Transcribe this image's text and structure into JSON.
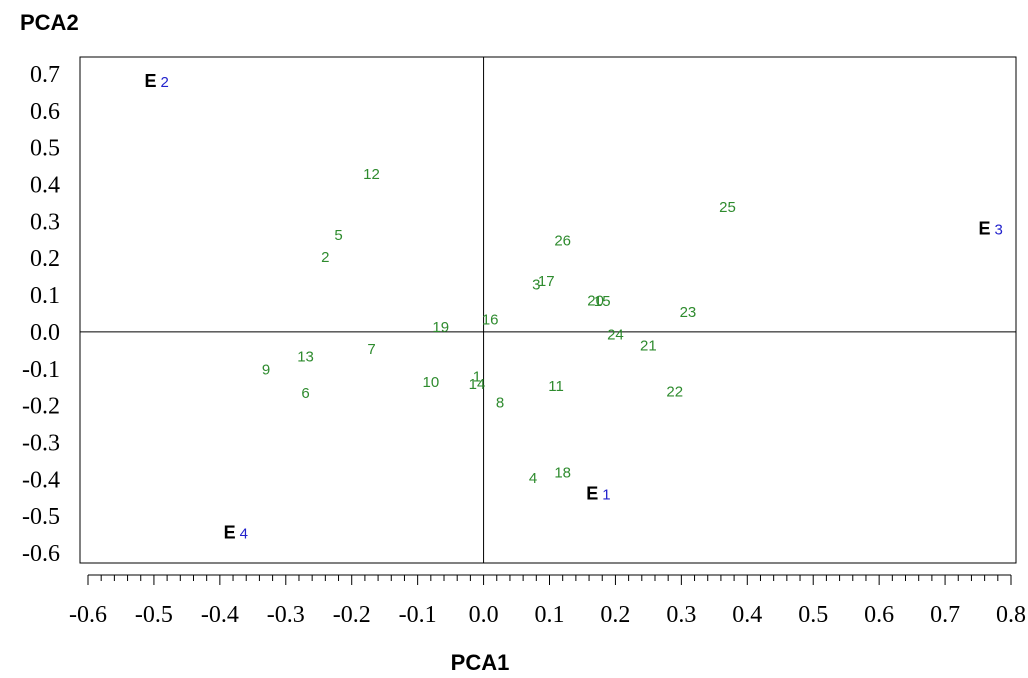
{
  "chart_data": {
    "type": "scatter",
    "xlabel": "PCA1",
    "ylabel": "PCA2",
    "xlim": [
      -0.6,
      0.8
    ],
    "ylim": [
      -0.6,
      0.7
    ],
    "x_ticks": [
      -0.6,
      -0.5,
      -0.4,
      -0.3,
      -0.2,
      -0.1,
      0.0,
      0.1,
      0.2,
      0.3,
      0.4,
      0.5,
      0.6,
      0.7,
      0.8
    ],
    "x_tick_labels": [
      "-0.6",
      "-0.5",
      "-0.4",
      "-0.3",
      "-0.2",
      "-0.1",
      "0.0",
      "0.1",
      "0.2",
      "0.3",
      "0.4",
      "0.5",
      "0.6",
      "0.7",
      "0.8"
    ],
    "y_ticks": [
      0.7,
      0.6,
      0.5,
      0.4,
      0.3,
      0.2,
      0.1,
      0.0,
      -0.1,
      -0.2,
      -0.3,
      -0.4,
      -0.5,
      -0.6
    ],
    "y_tick_labels": [
      "0.7",
      "0.6",
      "0.5",
      "0.4",
      "0.3",
      "0.2",
      "0.1",
      "0.0",
      "-0.1",
      "-0.2",
      "-0.3",
      "-0.4",
      "-0.5",
      "-0.6"
    ],
    "reference_lines": {
      "x": 0.0,
      "y": 0.0
    },
    "series": [
      {
        "color": "#2e8b2e",
        "points": [
          {
            "label": "1",
            "x": -0.01,
            "y": -0.135
          },
          {
            "label": "2",
            "x": -0.24,
            "y": 0.19
          },
          {
            "label": "3",
            "x": 0.08,
            "y": 0.115
          },
          {
            "label": "4",
            "x": 0.075,
            "y": -0.41
          },
          {
            "label": "5",
            "x": -0.22,
            "y": 0.25
          },
          {
            "label": "6",
            "x": -0.27,
            "y": -0.18
          },
          {
            "label": "7",
            "x": -0.17,
            "y": -0.06
          },
          {
            "label": "8",
            "x": 0.025,
            "y": -0.205
          },
          {
            "label": "9",
            "x": -0.33,
            "y": -0.115
          },
          {
            "label": "10",
            "x": -0.08,
            "y": -0.15
          },
          {
            "label": "11",
            "x": 0.11,
            "y": -0.16
          },
          {
            "label": "12",
            "x": -0.17,
            "y": 0.415
          },
          {
            "label": "13",
            "x": -0.27,
            "y": -0.08
          },
          {
            "label": "14",
            "x": -0.01,
            "y": -0.155
          },
          {
            "label": "15",
            "x": 0.18,
            "y": 0.07
          },
          {
            "label": "16",
            "x": 0.01,
            "y": 0.02
          },
          {
            "label": "17",
            "x": 0.095,
            "y": 0.125
          },
          {
            "label": "18",
            "x": 0.12,
            "y": -0.395
          },
          {
            "label": "19",
            "x": -0.065,
            "y": 0.0
          },
          {
            "label": "20",
            "x": 0.17,
            "y": 0.072
          },
          {
            "label": "21",
            "x": 0.25,
            "y": -0.05
          },
          {
            "label": "22",
            "x": 0.29,
            "y": -0.175
          },
          {
            "label": "23",
            "x": 0.31,
            "y": 0.04
          },
          {
            "label": "24",
            "x": 0.2,
            "y": -0.02
          },
          {
            "label": "25",
            "x": 0.37,
            "y": 0.325
          },
          {
            "label": "26",
            "x": 0.12,
            "y": 0.235
          }
        ]
      },
      {
        "color": "#2222cc",
        "letter": "E",
        "points": [
          {
            "label": "1",
            "x": 0.18,
            "y": -0.455
          },
          {
            "label": "2",
            "x": -0.49,
            "y": 0.665
          },
          {
            "label": "3",
            "x": 0.775,
            "y": 0.265
          },
          {
            "label": "4",
            "x": -0.37,
            "y": -0.56
          }
        ]
      }
    ]
  }
}
